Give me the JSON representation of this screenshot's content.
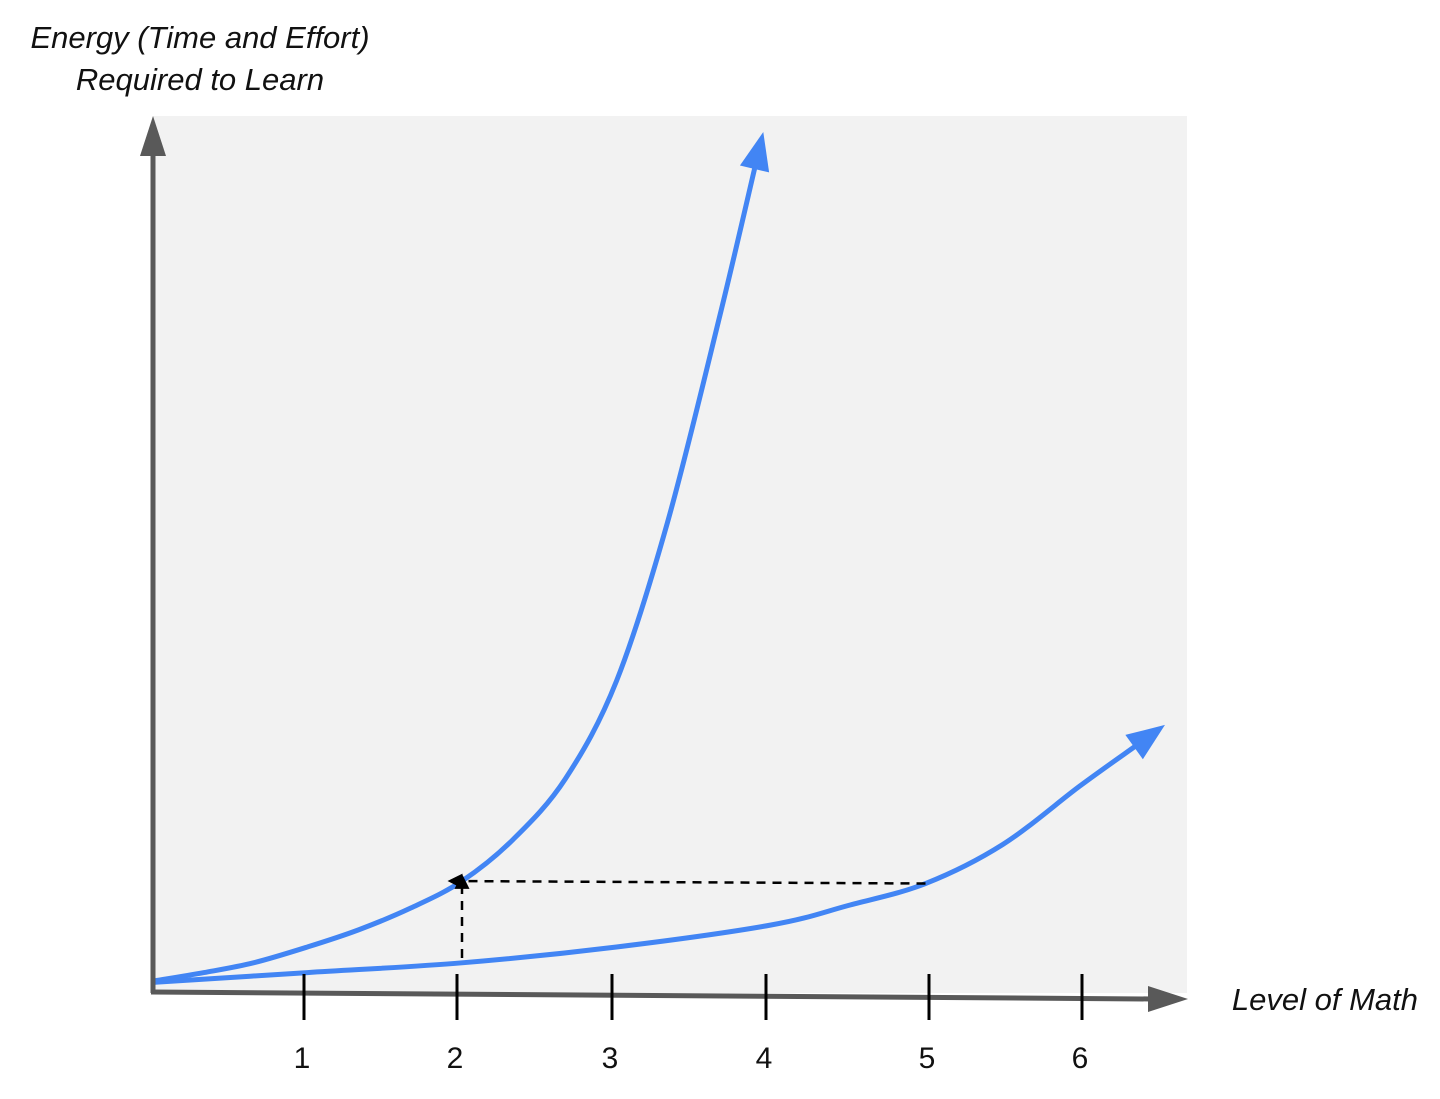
{
  "chart_data": {
    "type": "line",
    "title": "",
    "ylabel_lines": [
      "Energy (Time and Effort)",
      "Required to Learn"
    ],
    "xlabel": "Level of Math",
    "x_ticks": [
      "1",
      "2",
      "3",
      "4",
      "5",
      "6"
    ],
    "grid": false,
    "y_ticks": false,
    "colors": {
      "series": "#4285f4",
      "axis": "#595959",
      "plot_background": "#f2f2f2",
      "annotation": "#000000"
    },
    "series": [
      {
        "values": [
          [
            0,
            0.2
          ],
          [
            0.33,
            0.55
          ],
          [
            0.65,
            0.95
          ],
          [
            1,
            1.6
          ],
          [
            1.33,
            2.3
          ],
          [
            1.67,
            3.2
          ],
          [
            2,
            4.3
          ],
          [
            2.33,
            6.0
          ],
          [
            2.67,
            8.5
          ],
          [
            3,
            12.5
          ],
          [
            3.33,
            19
          ],
          [
            3.67,
            27.5
          ],
          [
            3.95,
            35
          ]
        ]
      },
      {
        "values": [
          [
            0,
            0.15
          ],
          [
            1,
            0.55
          ],
          [
            2,
            0.95
          ],
          [
            3,
            1.6
          ],
          [
            4,
            2.5
          ],
          [
            4.5,
            3.3
          ],
          [
            5,
            4.2
          ],
          [
            5.5,
            5.8
          ],
          [
            6,
            8.2
          ],
          [
            6.55,
            10.7
          ]
        ]
      }
    ],
    "annotations": [
      {
        "type": "dashed-arrow",
        "from": [
          5,
          4.2
        ],
        "to": [
          2,
          4.3
        ]
      },
      {
        "type": "dashed-arrow",
        "from": [
          2,
          1.15
        ],
        "to": [
          2,
          4.0
        ]
      }
    ]
  }
}
